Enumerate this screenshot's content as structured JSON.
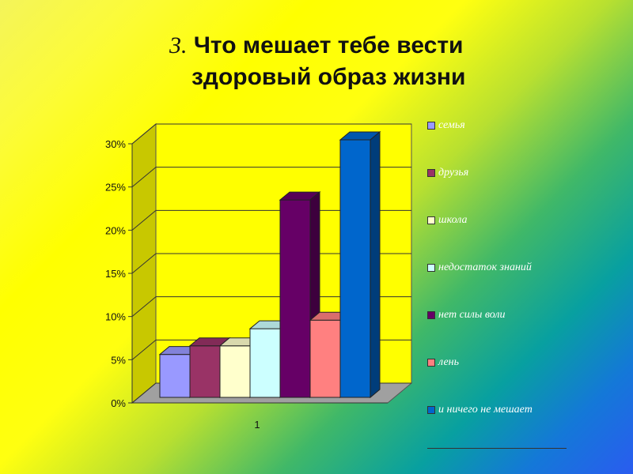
{
  "title": {
    "number": "3.",
    "line1": "Что мешает тебе вести",
    "line2": "здоровый образ жизни"
  },
  "chart_data": {
    "type": "bar",
    "categories": [
      "1"
    ],
    "ylim": [
      0,
      30
    ],
    "yticks": [
      "0%",
      "5%",
      "10%",
      "15%",
      "20%",
      "25%",
      "30%"
    ],
    "ytick_values": [
      0,
      5,
      10,
      15,
      20,
      25,
      30
    ],
    "grid": true,
    "three_d": true,
    "legend_position": "right",
    "series": [
      {
        "name": "семья",
        "values": [
          5
        ],
        "color": "#9999ff"
      },
      {
        "name": "друзья",
        "values": [
          6
        ],
        "color": "#993366"
      },
      {
        "name": "школа",
        "values": [
          6
        ],
        "color": "#ffffcc"
      },
      {
        "name": "недостаток знаний",
        "values": [
          8
        ],
        "color": "#ccffff"
      },
      {
        "name": "нет силы воли",
        "values": [
          23
        ],
        "color": "#660066"
      },
      {
        "name": "лень",
        "values": [
          9
        ],
        "color": "#ff8080"
      },
      {
        "name": "и ничего не мешает",
        "values": [
          30
        ],
        "color": "#0066cc"
      }
    ]
  }
}
